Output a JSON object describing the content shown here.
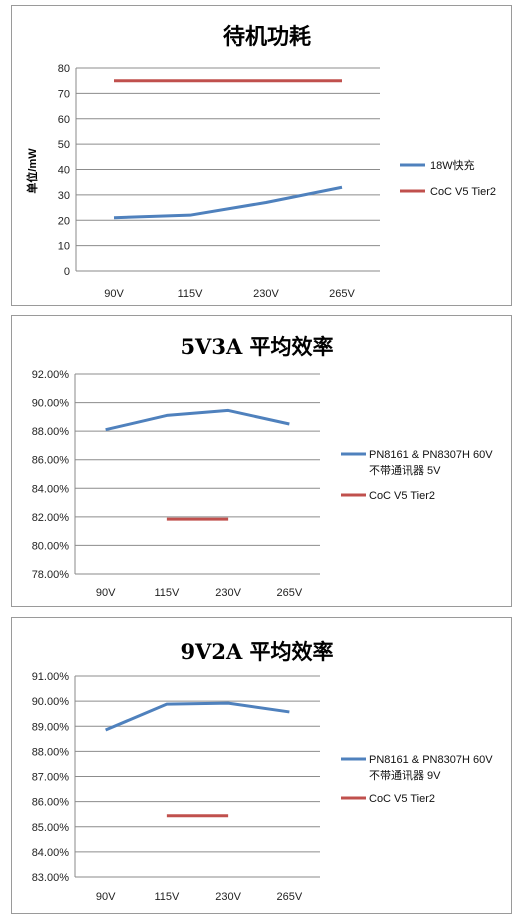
{
  "chart_data": [
    {
      "type": "line",
      "title": "待机功耗",
      "ylabel": "单位/mW",
      "categories": [
        "90V",
        "115V",
        "230V",
        "265V"
      ],
      "ylim": [
        0,
        80
      ],
      "yticks": [
        "0",
        "10",
        "20",
        "30",
        "40",
        "50",
        "60",
        "70",
        "80"
      ],
      "grid": true,
      "legend": "right",
      "series": [
        {
          "name": "18W快充",
          "values": [
            21,
            22,
            27,
            33
          ],
          "color": "#4f81bd"
        },
        {
          "name": "CoC V5 Tier2",
          "values": [
            75,
            75,
            75,
            75
          ],
          "color": "#c0504d"
        }
      ]
    },
    {
      "type": "line",
      "title": "5V3A 平均效率",
      "ylabel": "",
      "categories": [
        "90V",
        "115V",
        "230V",
        "265V"
      ],
      "ylim": [
        78,
        92
      ],
      "yticks": [
        "78.00%",
        "80.00%",
        "82.00%",
        "84.00%",
        "86.00%",
        "88.00%",
        "90.00%",
        "92.00%"
      ],
      "grid": true,
      "legend": "right",
      "series": [
        {
          "name_lines": [
            "PN8161 & PN8307H 60V",
            "不带通讯器 5V"
          ],
          "values": [
            88.1,
            89.1,
            89.45,
            88.5
          ],
          "color": "#4f81bd"
        },
        {
          "name": "CoC V5 Tier2",
          "values": [
            null,
            81.84,
            81.84,
            null
          ],
          "color": "#c0504d"
        }
      ]
    },
    {
      "type": "line",
      "title": "9V2A 平均效率",
      "ylabel": "",
      "categories": [
        "90V",
        "115V",
        "230V",
        "265V"
      ],
      "ylim": [
        83,
        91
      ],
      "yticks": [
        "83.00%",
        "84.00%",
        "85.00%",
        "86.00%",
        "87.00%",
        "88.00%",
        "89.00%",
        "90.00%",
        "91.00%"
      ],
      "grid": true,
      "legend": "right",
      "series": [
        {
          "name_lines": [
            "PN8161 & PN8307H 60V",
            "不带通讯器 9V"
          ],
          "values": [
            88.85,
            89.88,
            89.92,
            89.57
          ],
          "color": "#4f81bd"
        },
        {
          "name": "CoC V5 Tier2",
          "values": [
            null,
            85.44,
            85.44,
            null
          ],
          "color": "#c0504d"
        }
      ]
    }
  ]
}
